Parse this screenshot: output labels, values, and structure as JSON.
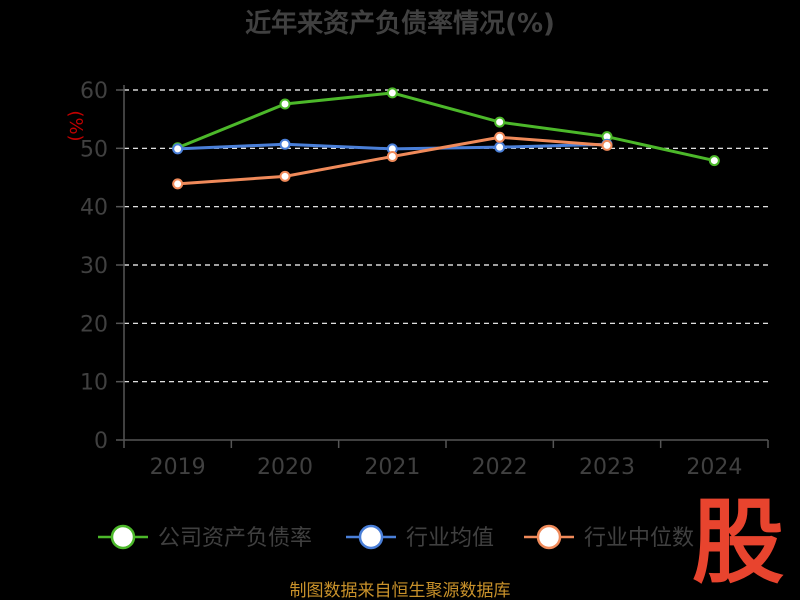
{
  "chart_data": {
    "type": "line",
    "title": "近年来资产负债率情况(%)",
    "ylabel": "(%)",
    "xlabel": "",
    "categories": [
      "2019",
      "2020",
      "2021",
      "2022",
      "2023",
      "2024"
    ],
    "ylim": [
      0,
      60
    ],
    "yticks": [
      0,
      10,
      20,
      30,
      40,
      50,
      60
    ],
    "grid": true,
    "legend_position": "bottom",
    "series": [
      {
        "name": "公司资产负债率",
        "color": "#4cb82a",
        "values": [
          50.1,
          57.6,
          59.5,
          54.5,
          52.0,
          47.9
        ]
      },
      {
        "name": "行业均值",
        "color": "#4a7fd8",
        "values": [
          49.9,
          50.7,
          49.9,
          50.2,
          50.7,
          null
        ]
      },
      {
        "name": "行业中位数",
        "color": "#f08a5a",
        "values": [
          43.9,
          45.2,
          48.6,
          51.9,
          50.5,
          null
        ]
      }
    ]
  },
  "source_text": "制图数据来自恒生聚源数据库",
  "watermark_text": "股"
}
